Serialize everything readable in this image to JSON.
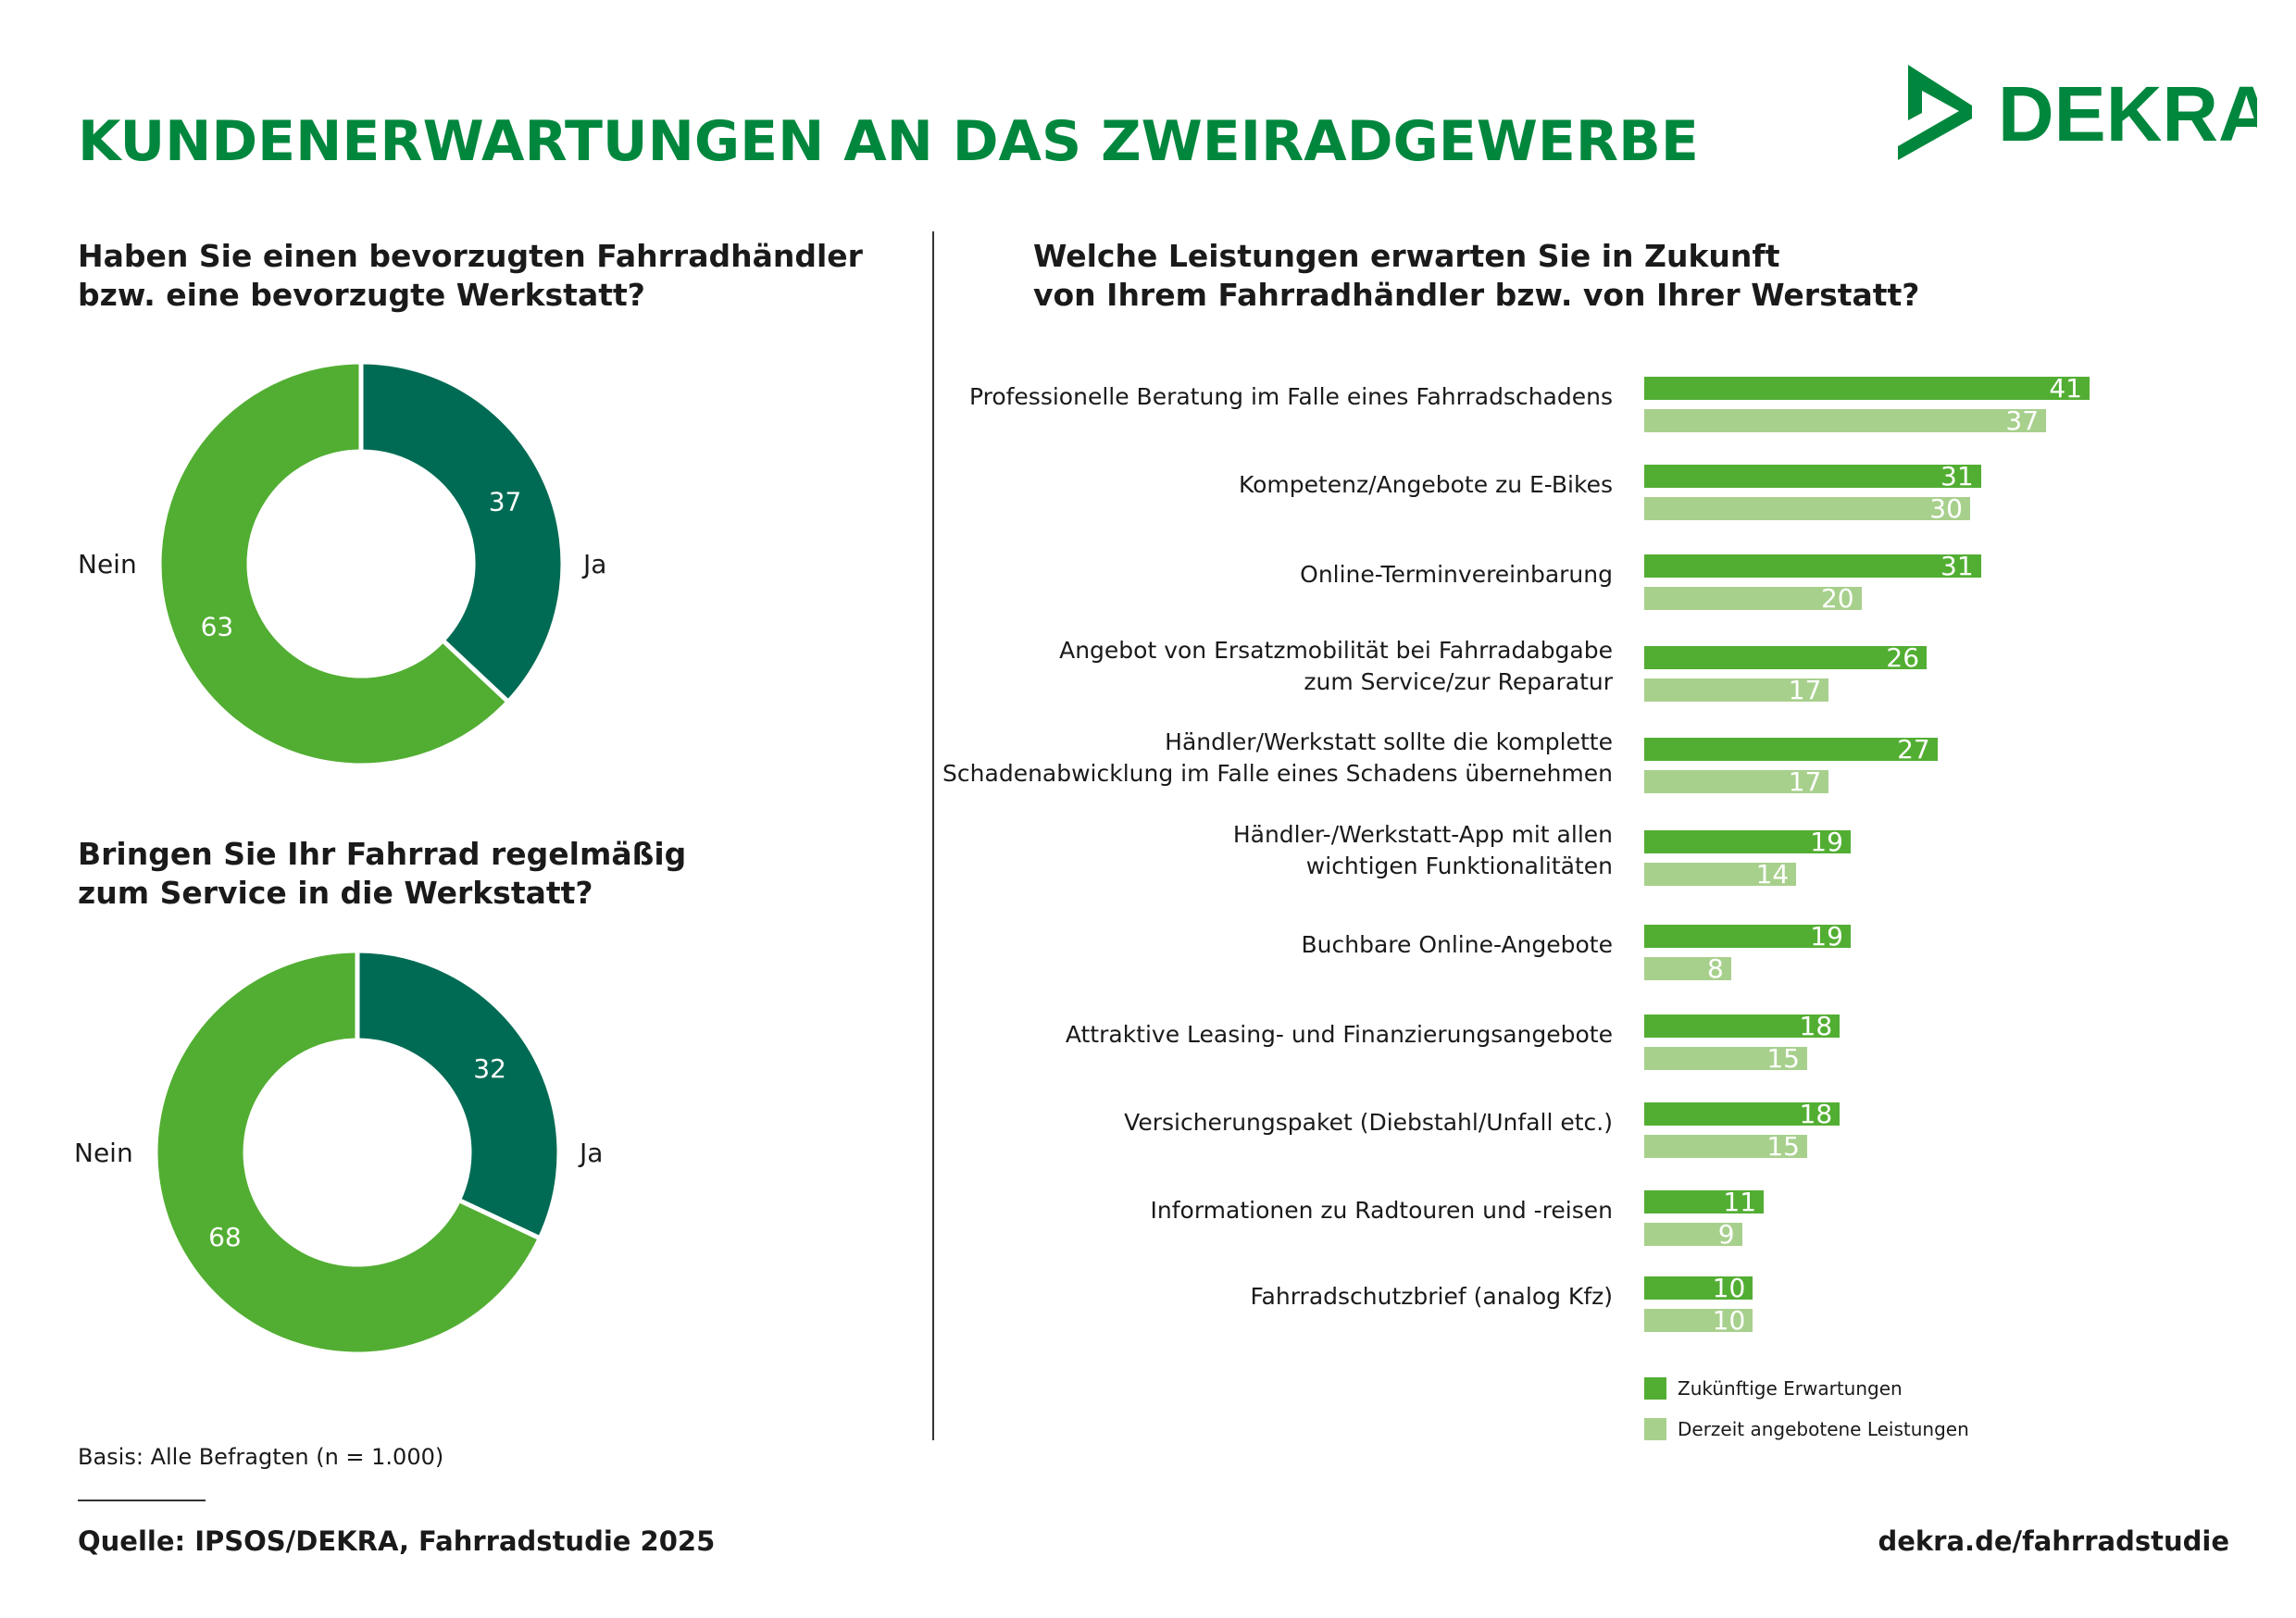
{
  "title": "KUNDENERWARTUNGEN AN DAS ZWEIRADGEWERBE",
  "logo_text": "DEKRA",
  "colors": {
    "title": "#00873d",
    "future": "#52ae32",
    "current": "#a8d08d",
    "ja": "#006b54",
    "nein": "#52ae32"
  },
  "chart_data": [
    {
      "type": "pie",
      "title": "Haben Sie einen bevorzugten Fahrradhändler bzw. eine bevorzugte Werkstatt?",
      "title_lines": [
        "Haben Sie einen bevorzugten Fahrradhändler",
        "bzw. eine bevorzugte Werkstatt?"
      ],
      "donut": true,
      "slices": [
        {
          "label": "Ja",
          "value": 37,
          "color": "#006b54"
        },
        {
          "label": "Nein",
          "value": 63,
          "color": "#52ae32"
        }
      ]
    },
    {
      "type": "pie",
      "title": "Bringen Sie Ihr Fahrrad regelmäßig zum Service in die Werkstatt?",
      "title_lines": [
        "Bringen Sie Ihr Fahrrad regelmäßig",
        "zum Service in die Werkstatt?"
      ],
      "donut": true,
      "slices": [
        {
          "label": "Ja",
          "value": 32,
          "color": "#006b54"
        },
        {
          "label": "Nein",
          "value": 68,
          "color": "#52ae32"
        }
      ]
    },
    {
      "type": "bar",
      "orientation": "horizontal",
      "title": "Welche Leistungen erwarten Sie in Zukunft von Ihrem Fahrradhändler bzw. von Ihrer Werstatt?",
      "title_lines": [
        "Welche Leistungen erwarten Sie in Zukunft",
        "von Ihrem Fahrradhändler bzw. von Ihrer Werstatt?"
      ],
      "legend": "bottom",
      "categories": [
        [
          "Professionelle Beratung im Falle eines Fahrradschadens"
        ],
        [
          "Kompetenz/Angebote zu E-Bikes"
        ],
        [
          "Online-Terminvereinbarung"
        ],
        [
          "Angebot von Ersatzmobilität bei Fahrradabgabe",
          "zum Service/zur Reparatur"
        ],
        [
          "Händler/Werkstatt sollte die komplette",
          "Schadenabwicklung im Falle eines Schadens übernehmen"
        ],
        [
          "Händler-/Werkstatt-App mit allen",
          "wichtigen Funktionalitäten"
        ],
        [
          "Buchbare Online-Angebote"
        ],
        [
          "Attraktive Leasing- und Finanzierungsangebote"
        ],
        [
          "Versicherungspaket (Diebstahl/Unfall etc.)"
        ],
        [
          "Informationen zu Radtouren und -reisen"
        ],
        [
          "Fahrradschutzbrief (analog Kfz)"
        ]
      ],
      "series": [
        {
          "name": "Zukünftige Erwartungen",
          "color": "#52ae32",
          "values": [
            41,
            31,
            31,
            26,
            27,
            19,
            19,
            18,
            18,
            11,
            10
          ]
        },
        {
          "name": "Derzeit angebotene Leistungen",
          "color": "#a8d08d",
          "values": [
            37,
            30,
            20,
            17,
            17,
            14,
            8,
            15,
            15,
            9,
            10
          ]
        }
      ]
    }
  ],
  "footer": {
    "basis": "Basis: Alle Befragten (n = 1.000)",
    "source": "Quelle: IPSOS/DEKRA, Fahrradstudie 2025",
    "url": "dekra.de/fahrradstudie"
  }
}
